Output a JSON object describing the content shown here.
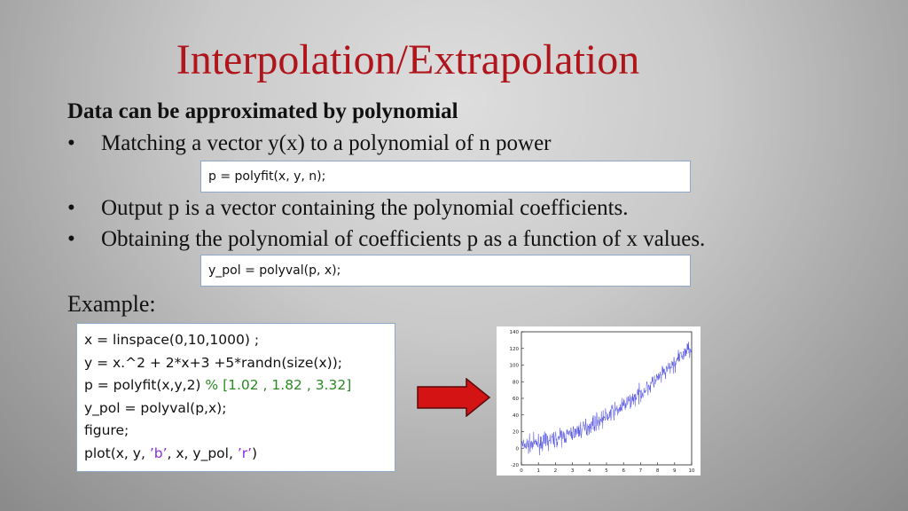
{
  "title": "Interpolation/Extrapolation",
  "heading": "Data can be approximated by polynomial",
  "bullets": [
    "Matching a vector y(x) to a polynomial of n power",
    "Output p is a vector containing the polynomial coefficients.",
    "Obtaining the polynomial of coefficients p as a function of x values."
  ],
  "bullet_symbol": "•",
  "code1": "p = polyfit(x, y, n);",
  "code2": "y_pol = polyval(p, x);",
  "example_label": "Example:",
  "example_code": {
    "line1": "x = linspace(0,10,1000) ;",
    "line2": "y = x.^2 + 2*x+3 +5*randn(size(x));",
    "line3_code": "p = polyfit(x,y,2)",
    "line3_comment": " %  [1.02 , 1.82 , 3.32]",
    "line4": "y_pol = polyval(p,x);",
    "line5": "figure;",
    "line6_a": "plot(x, y, ",
    "line6_b": "’b’",
    "line6_c": ", x, y_pol, ",
    "line6_d": "’r’",
    "line6_e": ")"
  },
  "colors": {
    "title": "#b0151c",
    "comment": "#2a8a22",
    "string": "#8a2be2",
    "arrow": "#d41414",
    "series": "#5050e0"
  },
  "chart_data": {
    "type": "line",
    "title": "",
    "xlabel": "",
    "ylabel": "",
    "xlim": [
      0,
      10
    ],
    "ylim": [
      -20,
      140
    ],
    "x_ticks": [
      "0",
      "1",
      "2",
      "3",
      "4",
      "5",
      "6",
      "7",
      "8",
      "9",
      "10"
    ],
    "y_ticks": [
      "-20",
      "0",
      "20",
      "40",
      "60",
      "80",
      "100",
      "120",
      "140"
    ],
    "series": [
      {
        "color": "blue",
        "x": [
          0,
          1,
          2,
          3,
          4,
          5,
          6,
          7,
          8,
          9,
          10
        ],
        "y": [
          3,
          6,
          11,
          18,
          27,
          38,
          51,
          66,
          83,
          102,
          123
        ]
      }
    ]
  }
}
